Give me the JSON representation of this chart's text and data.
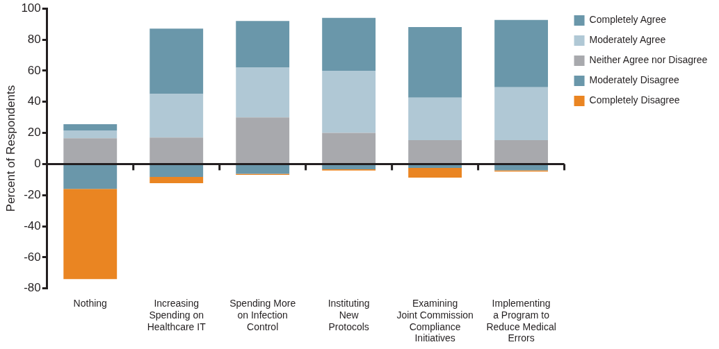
{
  "chart_data": {
    "type": "bar",
    "stacked": true,
    "ylabel": "Percent of Respondents",
    "categories": [
      "Nothing",
      "Increasing\nSpending on\nHealthcare IT",
      "Spending More\non Infection\nControl",
      "Instituting\nNew\nProtocols",
      "Examining\nJoint Commission\nCompliance\nInitiatives",
      "Implementing\na Program to\nReduce Medical\nErrors"
    ],
    "series": [
      {
        "name": "Neither Agree nor Disagree",
        "color": "#a8a9ad",
        "values": [
          16.6,
          17,
          30,
          20,
          15.4,
          15.4
        ]
      },
      {
        "name": "Moderately Agree",
        "color": "#b0c8d5",
        "values": [
          5,
          28,
          32,
          40,
          27.3,
          34
        ]
      },
      {
        "name": "Completely Agree",
        "color": "#6a97aa",
        "values": [
          4,
          42,
          30,
          34,
          45.4,
          43.2
        ]
      },
      {
        "name": "Moderately Disagree",
        "color": "#6a97aa",
        "values": [
          -16,
          -8.3,
          -6.3,
          -3.4,
          -2.5,
          -4
        ]
      },
      {
        "name": "Completely Disagree",
        "color": "#ea8522",
        "values": [
          -58,
          -4,
          -0.7,
          -0.8,
          -6.2,
          -0.8
        ]
      }
    ],
    "ylim": [
      -80,
      100
    ],
    "yticks": [
      -80,
      -60,
      -40,
      -20,
      0,
      20,
      40,
      60,
      80,
      100
    ],
    "legend": "top right"
  }
}
